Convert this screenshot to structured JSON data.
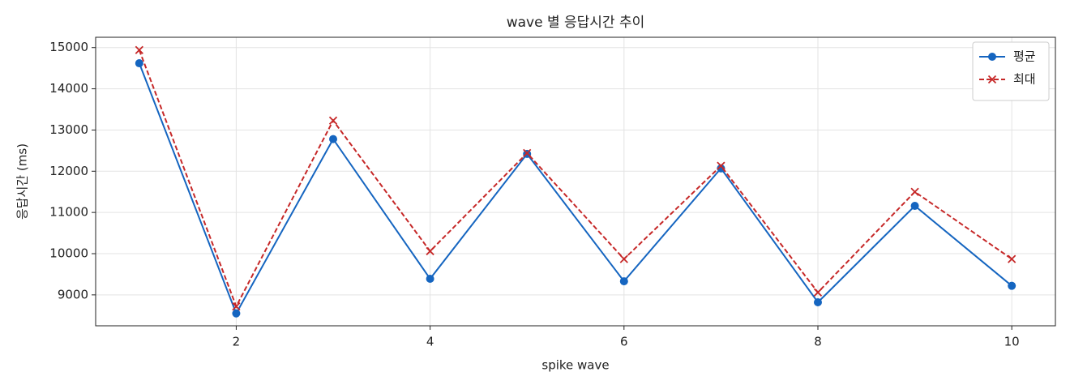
{
  "chart_data": {
    "type": "line",
    "title": "wave 별 응답시간 추이",
    "x_label": "spike wave",
    "y_label": "응답시간 (ms)",
    "x": [
      1,
      2,
      3,
      4,
      5,
      6,
      7,
      8,
      9,
      10
    ],
    "series": [
      {
        "name": "평균",
        "color": "#1565c0",
        "marker": "circle",
        "dash": "solid",
        "values": [
          14620,
          8550,
          12780,
          9390,
          12420,
          9330,
          12070,
          8820,
          11160,
          9220
        ]
      },
      {
        "name": "최대",
        "color": "#c62828",
        "marker": "x",
        "dash": "dashed",
        "values": [
          14940,
          8720,
          13230,
          10060,
          12440,
          9870,
          12130,
          9060,
          11500,
          9870
        ]
      }
    ],
    "xlim": [
      0.55,
      10.45
    ],
    "xticks": [
      2,
      4,
      6,
      8,
      10
    ],
    "ylim": [
      8250,
      15250
    ],
    "yticks": [
      9000,
      10000,
      11000,
      12000,
      13000,
      14000,
      15000
    ],
    "grid": true,
    "legend": "upper right"
  }
}
